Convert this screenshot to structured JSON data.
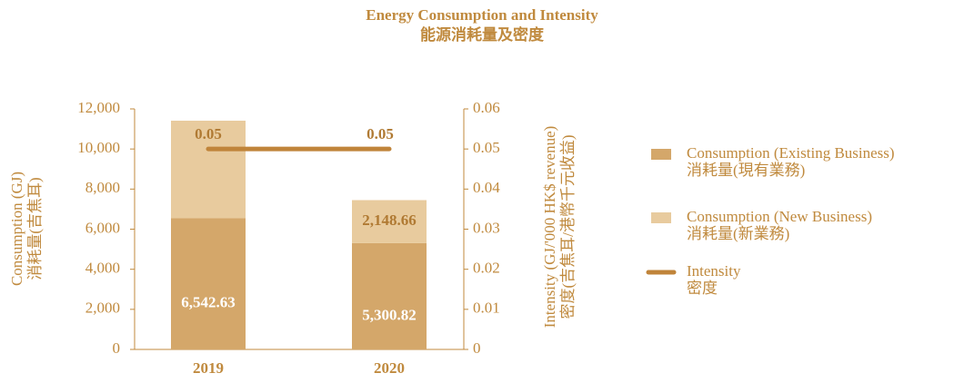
{
  "chart_data": {
    "type": "bar",
    "title": [
      "Energy Consumption and Intensity",
      "能源消耗量及密度"
    ],
    "ylabel": [
      "Consumption (GJ)",
      "消耗量(吉焦耳)"
    ],
    "y2label": [
      "Intensity (GJ/'000 HK$ revenue)",
      "密度(吉焦耳/港幣千元收益)"
    ],
    "categories": [
      "2019",
      "2020"
    ],
    "stacked": true,
    "series": [
      {
        "name": [
          "Consumption (Existing Business)",
          "消耗量(現有業務)"
        ],
        "color": "#d4a76a",
        "values": [
          6542.63,
          5300.82
        ],
        "value_labels": [
          "6,542.63",
          "5,300.82"
        ]
      },
      {
        "name": [
          "Consumption (New Business)",
          "消耗量(新業務)"
        ],
        "color": "#e8cb9e",
        "values": [
          4870,
          2148.66
        ],
        "value_labels": [
          null,
          "2,148.66"
        ]
      },
      {
        "name": [
          "Intensity",
          "密度"
        ],
        "color": "#c0843a",
        "type": "line",
        "axis": "y2",
        "values": [
          0.05,
          0.05
        ]
      }
    ],
    "ylim": [
      0,
      12000
    ],
    "yticks": [
      0,
      {
        "value": 2000,
        "label": "2,000"
      },
      {
        "value": 4000,
        "label": "4,000"
      },
      {
        "value": 6000,
        "label": "6,000"
      },
      {
        "value": 8000,
        "label": "8,000"
      },
      {
        "value": 10000,
        "label": "10,000"
      },
      {
        "value": 12000,
        "label": "12,000"
      }
    ],
    "y2lim": [
      0,
      0.06
    ],
    "y2ticks": [
      0,
      0.01,
      0.02,
      0.03,
      0.04,
      0.05,
      0.06
    ],
    "legend": "right"
  }
}
